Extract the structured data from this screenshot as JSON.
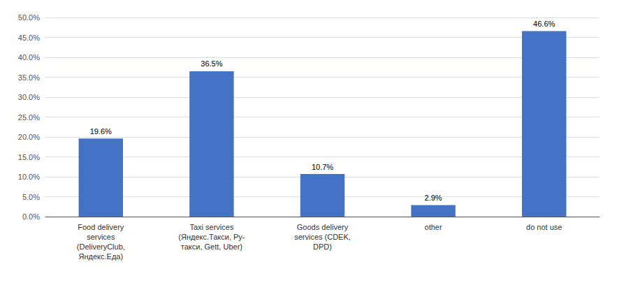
{
  "chart_data": {
    "type": "bar",
    "categories": [
      "Food delivery\nservices\n(DeliveryClub,\nЯндекс.Еда)",
      "Taxi services\n(Яндекс.Такси, Ру-\nтакси, Gett, Uber)",
      "Goods delivery\nservices (CDEK,\nDPD)",
      "other",
      "do not use"
    ],
    "values": [
      19.6,
      36.5,
      10.7,
      2.9,
      46.6
    ],
    "value_labels": [
      "19.6%",
      "36.5%",
      "10.7%",
      "2.9%",
      "46.6%"
    ],
    "data_labels": true,
    "color": "#4472C4",
    "ylim": [
      0,
      50
    ],
    "yticks": [
      {
        "value": 0,
        "label": "0.0%"
      },
      {
        "value": 5,
        "label": "5.0%"
      },
      {
        "value": 10,
        "label": "10.0%"
      },
      {
        "value": 15,
        "label": "15.0%"
      },
      {
        "value": 20,
        "label": "20.0%"
      },
      {
        "value": 25,
        "label": "25.0%"
      },
      {
        "value": 30,
        "label": "30.0%"
      },
      {
        "value": 35,
        "label": "35.0%"
      },
      {
        "value": 40,
        "label": "40.0%"
      },
      {
        "value": 45,
        "label": "45.0%"
      },
      {
        "value": 50,
        "label": "50.0%"
      }
    ],
    "grid": true
  }
}
